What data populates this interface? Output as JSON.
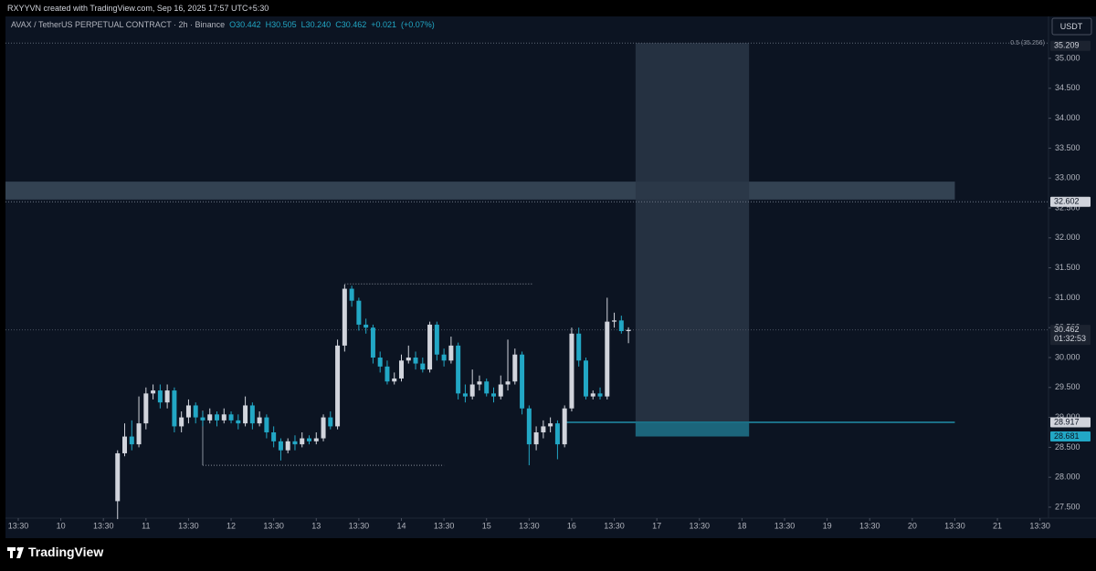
{
  "chart_data": {
    "type": "candlestick",
    "credit": "RXYYVN created with TradingView.com, Sep 16, 2025 17:57 UTC+5:30",
    "title": "AVAX / TetherUS PERPETUAL CONTRACT · 2h · Binance",
    "header_values": [
      {
        "value": 30.442,
        "label": "O30.442"
      },
      {
        "value": 30.505,
        "label": "H30.505"
      },
      {
        "value": 30.24,
        "label": "L30.240"
      },
      {
        "value": 30.462,
        "label": "C30.462"
      },
      {
        "value": 0.021,
        "label": "+0.021"
      },
      {
        "value": 0.07,
        "label": "(+0.07%)"
      }
    ],
    "currency": "USDT",
    "brand": "TradingView",
    "up_color": "#d1d4dc",
    "down_color": "#22a7c5",
    "x": [
      14,
      15,
      16,
      17,
      18,
      19,
      20,
      21,
      22,
      23,
      24,
      25,
      26,
      27,
      28,
      29,
      30,
      31,
      32,
      33,
      34,
      35,
      36,
      37,
      38,
      39,
      40,
      41,
      42,
      43,
      44,
      45,
      46,
      47,
      48,
      49,
      50,
      51,
      52,
      53,
      54,
      55,
      56,
      57,
      58,
      59,
      60,
      61,
      62,
      63,
      64,
      65,
      66,
      67,
      68,
      69,
      70,
      71,
      72,
      73,
      74,
      75,
      76,
      77,
      78,
      79,
      80,
      81,
      82,
      83,
      84,
      85,
      86
    ],
    "open": [
      27.6,
      28.4,
      28.68,
      28.55,
      28.9,
      29.4,
      29.45,
      29.25,
      29.45,
      28.85,
      29.0,
      29.2,
      29.0,
      28.95,
      29.05,
      28.95,
      29.05,
      28.95,
      28.9,
      29.2,
      28.9,
      29.0,
      28.75,
      28.6,
      28.45,
      28.6,
      28.55,
      28.65,
      28.6,
      28.65,
      29.0,
      28.85,
      30.2,
      31.15,
      30.95,
      30.55,
      30.5,
      30.0,
      29.85,
      29.6,
      29.65,
      29.95,
      30.0,
      29.9,
      29.8,
      30.55,
      30.05,
      29.95,
      30.2,
      29.4,
      29.35,
      29.55,
      29.6,
      29.4,
      29.35,
      29.55,
      29.6,
      30.05,
      29.15,
      28.55,
      28.75,
      28.85,
      28.9,
      28.55,
      29.15,
      30.4,
      29.95,
      29.35,
      29.4,
      29.35,
      30.6,
      30.62,
      30.442
    ],
    "high": [
      28.45,
      28.9,
      28.95,
      29.35,
      29.5,
      29.55,
      29.55,
      29.55,
      29.5,
      29.1,
      29.3,
      29.25,
      29.1,
      29.15,
      29.1,
      29.15,
      29.1,
      29.05,
      29.35,
      29.25,
      29.1,
      29.05,
      28.85,
      28.65,
      28.65,
      28.7,
      28.75,
      28.7,
      28.75,
      29.05,
      29.1,
      30.3,
      31.22,
      31.2,
      31.0,
      30.65,
      30.55,
      30.1,
      29.95,
      29.75,
      30.05,
      30.2,
      30.1,
      30.0,
      30.6,
      30.6,
      30.15,
      30.35,
      30.25,
      29.55,
      29.8,
      29.7,
      29.65,
      29.5,
      29.7,
      30.3,
      30.15,
      30.1,
      29.2,
      28.85,
      28.95,
      29.0,
      28.95,
      29.2,
      30.5,
      30.5,
      30.0,
      29.45,
      29.5,
      31.0,
      30.75,
      30.7,
      30.505
    ],
    "low": [
      27.3,
      28.35,
      28.45,
      28.5,
      28.8,
      29.3,
      29.15,
      29.15,
      28.75,
      28.75,
      28.9,
      28.9,
      28.85,
      28.9,
      28.85,
      28.9,
      28.9,
      28.8,
      28.85,
      28.8,
      28.85,
      28.65,
      28.5,
      28.28,
      28.4,
      28.45,
      28.5,
      28.55,
      28.55,
      28.6,
      28.8,
      28.8,
      30.1,
      30.85,
      30.45,
      30.4,
      29.9,
      29.75,
      29.55,
      29.55,
      29.6,
      29.9,
      29.8,
      29.75,
      29.75,
      29.95,
      29.85,
      29.9,
      29.3,
      29.25,
      29.3,
      29.45,
      29.35,
      29.25,
      29.3,
      29.45,
      29.55,
      29.05,
      28.2,
      28.45,
      28.65,
      28.75,
      28.3,
      28.5,
      29.1,
      29.85,
      29.3,
      29.3,
      29.3,
      29.3,
      30.5,
      30.4,
      30.24
    ],
    "close": [
      28.4,
      28.68,
      28.55,
      28.9,
      29.4,
      29.45,
      29.25,
      29.45,
      28.85,
      29.0,
      29.2,
      29.0,
      28.95,
      29.05,
      28.95,
      29.05,
      28.95,
      28.9,
      29.2,
      28.9,
      29.0,
      28.75,
      28.6,
      28.45,
      28.6,
      28.55,
      28.65,
      28.6,
      28.65,
      29.0,
      28.85,
      30.2,
      31.15,
      30.95,
      30.55,
      30.5,
      30.0,
      29.85,
      29.6,
      29.65,
      29.95,
      30.0,
      29.9,
      29.8,
      30.55,
      30.05,
      29.95,
      30.2,
      29.4,
      29.35,
      29.55,
      29.6,
      29.4,
      29.35,
      29.55,
      29.6,
      30.05,
      29.15,
      28.55,
      28.75,
      28.85,
      28.9,
      28.55,
      29.15,
      30.4,
      29.95,
      29.35,
      29.4,
      29.35,
      30.6,
      30.62,
      30.442,
      30.462
    ],
    "xlim": [
      -1.8,
      145.2
    ],
    "xticks": [
      {
        "value": 0,
        "label": "13:30"
      },
      {
        "value": 6,
        "label": "10"
      },
      {
        "value": 12,
        "label": "13:30"
      },
      {
        "value": 18,
        "label": "11"
      },
      {
        "value": 24,
        "label": "13:30"
      },
      {
        "value": 30,
        "label": "12"
      },
      {
        "value": 36,
        "label": "13:30"
      },
      {
        "value": 42,
        "label": "13"
      },
      {
        "value": 48,
        "label": "13:30"
      },
      {
        "value": 54,
        "label": "14"
      },
      {
        "value": 60,
        "label": "13:30"
      },
      {
        "value": 66,
        "label": "15"
      },
      {
        "value": 72,
        "label": "13:30"
      },
      {
        "value": 78,
        "label": "16"
      },
      {
        "value": 84,
        "label": "13:30"
      },
      {
        "value": 90,
        "label": "17"
      },
      {
        "value": 96,
        "label": "13:30"
      },
      {
        "value": 102,
        "label": "18"
      },
      {
        "value": 108,
        "label": "13:30"
      },
      {
        "value": 114,
        "label": "19"
      },
      {
        "value": 120,
        "label": "13:30"
      },
      {
        "value": 126,
        "label": "20"
      },
      {
        "value": 132,
        "label": "13:30"
      },
      {
        "value": 138,
        "label": "21"
      },
      {
        "value": 144,
        "label": "13:30"
      }
    ],
    "ylim": [
      27.317,
      35.701
    ],
    "yticks": [
      {
        "value": 27.5,
        "label": "27.500"
      },
      {
        "value": 28,
        "label": "28.000"
      },
      {
        "value": 28.5,
        "label": "28.500"
      },
      {
        "value": 29,
        "label": "29.000"
      },
      {
        "value": 29.5,
        "label": "29.500"
      },
      {
        "value": 30,
        "label": "30.000"
      },
      {
        "value": 30.5,
        "label": "30.500"
      },
      {
        "value": 31,
        "label": "31.000"
      },
      {
        "value": 31.5,
        "label": "31.500"
      },
      {
        "value": 32,
        "label": "32.000"
      },
      {
        "value": 32.5,
        "label": "32.500"
      },
      {
        "value": 33,
        "label": "33.000"
      },
      {
        "value": 33.5,
        "label": "33.500"
      },
      {
        "value": 34,
        "label": "34.000"
      },
      {
        "value": 34.5,
        "label": "34.500"
      },
      {
        "value": 35,
        "label": "35.000"
      }
    ],
    "fib_level": {
      "value": 35.256,
      "label": "0.5 (35.256)"
    },
    "price_tags": [
      {
        "value": 35.209,
        "style": "dark"
      },
      {
        "value": 32.602,
        "style": "light"
      },
      {
        "value": 30.462,
        "style": "dark",
        "countdown": "01:32:53"
      },
      {
        "value": 28.917,
        "style": "light"
      },
      {
        "value": 28.681,
        "style": "teal"
      }
    ],
    "zones": [
      {
        "from": 32.64,
        "to": 32.94,
        "x": [
          -1.8,
          132
        ],
        "color": "#3b4a5a"
      },
      {
        "from": 28.681,
        "to": 35.256,
        "x": [
          87,
          103
        ],
        "color": "#2a3646"
      },
      {
        "from": 28.681,
        "to": 28.917,
        "x": [
          87,
          103
        ],
        "color": "#1b6f86"
      }
    ],
    "levels": [
      {
        "value": 31.23,
        "x": [
          46,
          72.5
        ]
      },
      {
        "value": 28.2,
        "x": [
          26,
          60
        ]
      },
      {
        "value": 28.917,
        "x": [
          77,
          132
        ]
      }
    ]
  }
}
